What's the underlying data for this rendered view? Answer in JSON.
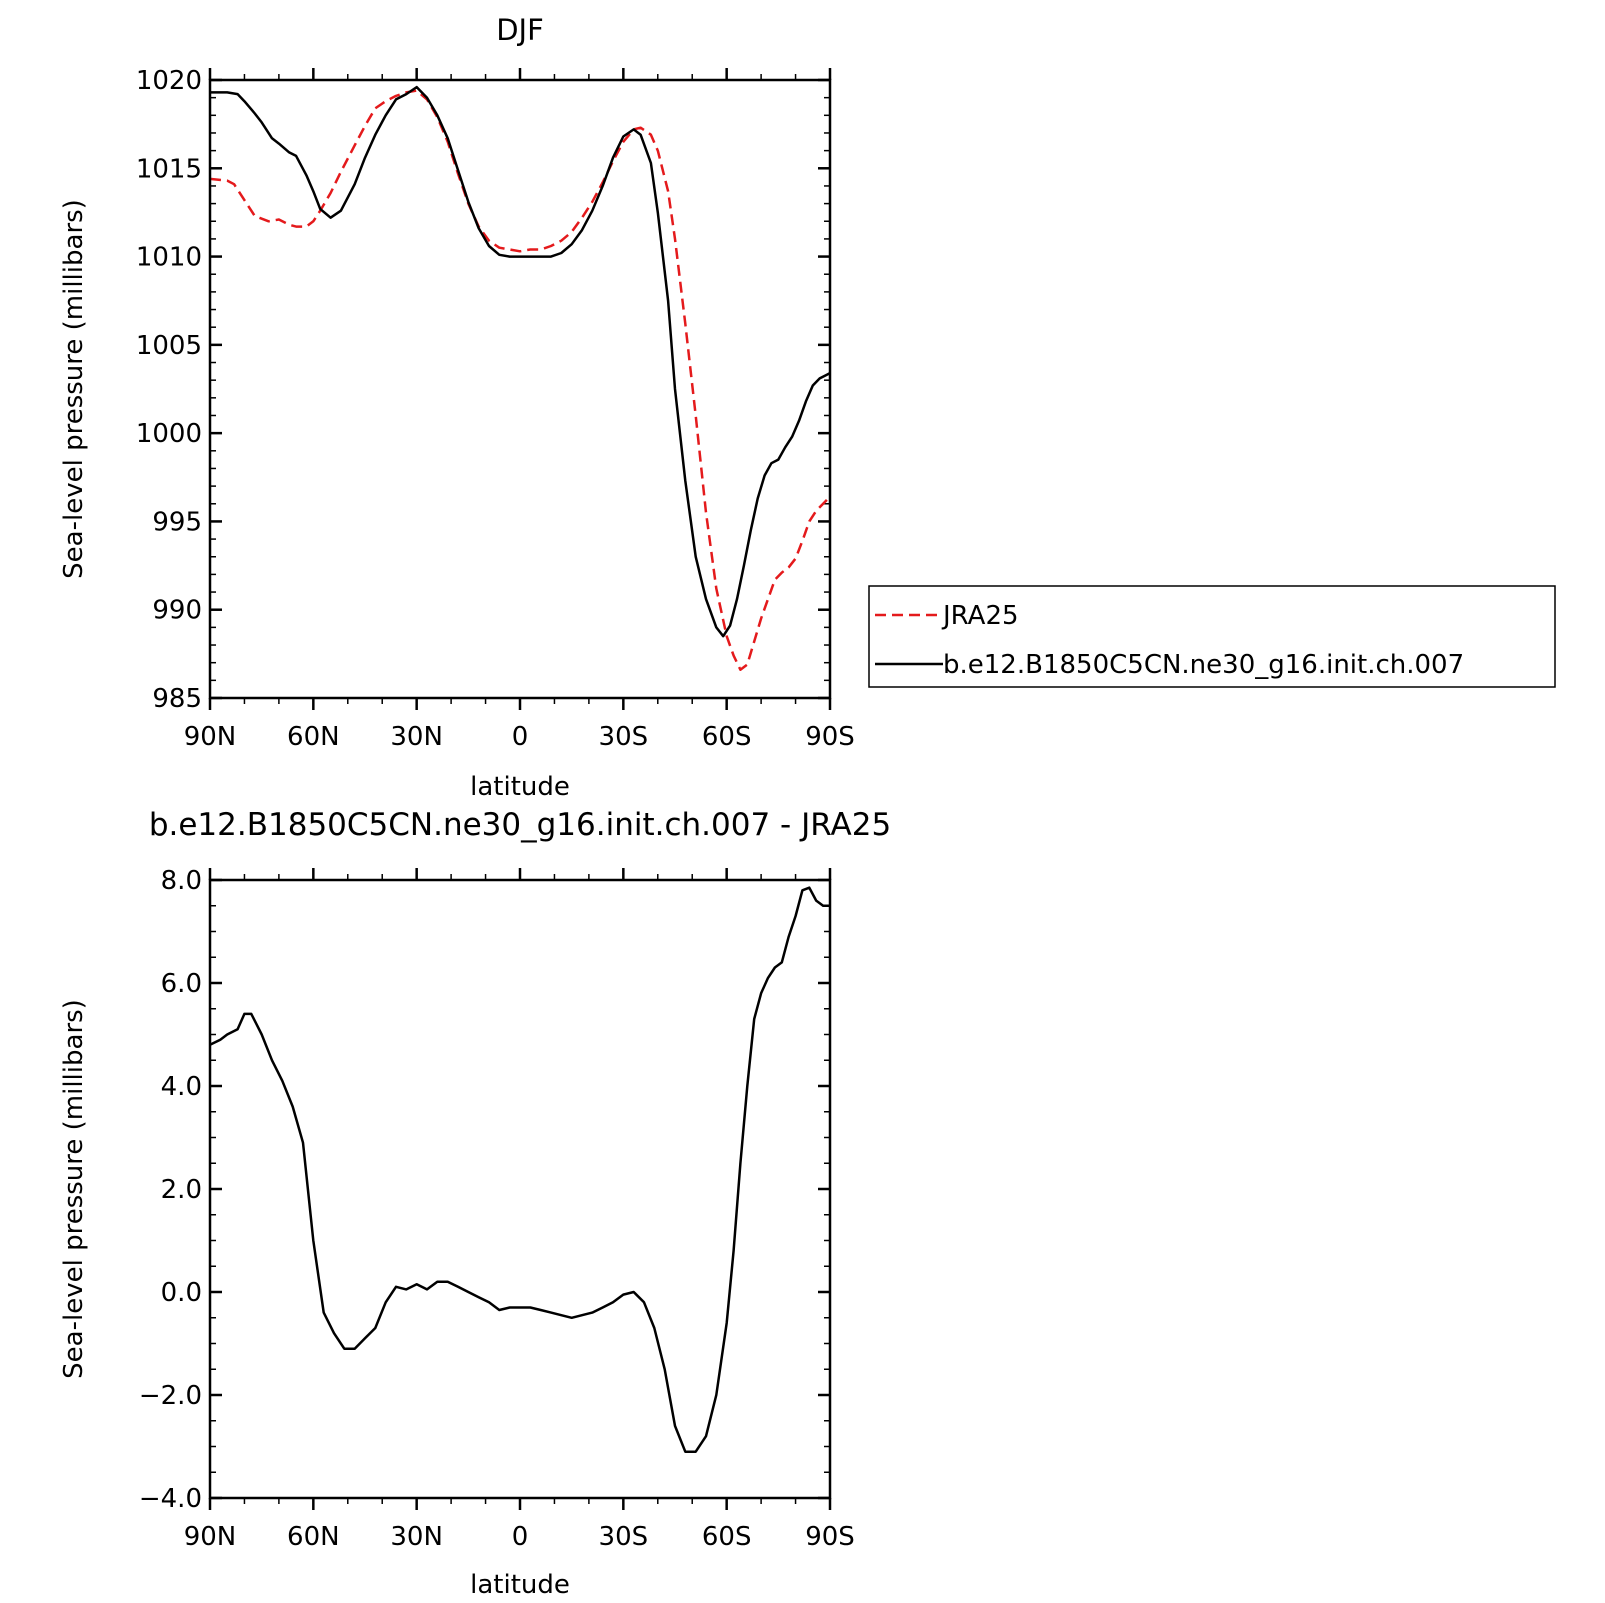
{
  "chart_data": [
    {
      "type": "line",
      "title": "DJF",
      "xlabel": "latitude",
      "ylabel": "Sea-level pressure (millibars)",
      "xlim": [
        90,
        -90
      ],
      "ylim": [
        985,
        1020
      ],
      "x_ticks": [
        90,
        60,
        30,
        0,
        -30,
        -60,
        -90
      ],
      "x_tick_labels": [
        "90N",
        "60N",
        "30N",
        "0",
        "30S",
        "60S",
        "90S"
      ],
      "y_ticks": [
        985,
        990,
        995,
        1000,
        1005,
        1010,
        1015,
        1020
      ],
      "y_tick_labels": [
        "985",
        "990",
        "995",
        "1000",
        "1005",
        "1010",
        "1015",
        "1020"
      ],
      "legend_position": "right",
      "series": [
        {
          "name": "JRA25",
          "color": "#e41a1c",
          "style": "dashed",
          "x": [
            90,
            85,
            83,
            80,
            77,
            73,
            70,
            67,
            65,
            62,
            60,
            58,
            55,
            52,
            48,
            45,
            42,
            39,
            36,
            33,
            30,
            27,
            24,
            21,
            18,
            15,
            12,
            9,
            6,
            3,
            0,
            -3,
            -6,
            -9,
            -12,
            -15,
            -18,
            -21,
            -24,
            -27,
            -30,
            -33,
            -35,
            -38,
            -40,
            -43,
            -45,
            -48,
            -51,
            -54,
            -57,
            -60,
            -62,
            -64,
            -66,
            -68,
            -70,
            -72,
            -74,
            -76,
            -78,
            -80,
            -82,
            -84,
            -86,
            -88,
            -90
          ],
          "y": [
            1014.4,
            1014.3,
            1014.1,
            1013.2,
            1012.3,
            1012.0,
            1012.1,
            1011.8,
            1011.7,
            1011.7,
            1012.0,
            1012.6,
            1013.6,
            1014.8,
            1016.3,
            1017.4,
            1018.4,
            1018.8,
            1019.1,
            1019.3,
            1019.4,
            1018.9,
            1017.9,
            1016.5,
            1014.7,
            1013.0,
            1011.7,
            1010.9,
            1010.5,
            1010.4,
            1010.3,
            1010.4,
            1010.4,
            1010.6,
            1010.9,
            1011.4,
            1012.2,
            1013.1,
            1014.2,
            1015.4,
            1016.5,
            1017.2,
            1017.3,
            1016.9,
            1016.0,
            1013.7,
            1011.0,
            1006.2,
            1001.0,
            995.5,
            991.2,
            988.5,
            987.4,
            986.6,
            986.9,
            988.2,
            989.5,
            990.6,
            991.7,
            992.1,
            992.4,
            992.9,
            993.9,
            995.0,
            995.6,
            996.0,
            996.4
          ]
        },
        {
          "name": "b.e12.B1850C5CN.ne30_g16.init.ch.007",
          "color": "#000000",
          "style": "solid",
          "x": [
            90,
            87,
            85,
            82,
            80,
            77,
            75,
            72,
            70,
            67,
            65,
            62,
            60,
            58,
            55,
            52,
            48,
            45,
            42,
            39,
            36,
            33,
            30,
            27,
            24,
            21,
            18,
            15,
            12,
            9,
            6,
            3,
            0,
            -3,
            -6,
            -9,
            -12,
            -15,
            -18,
            -21,
            -24,
            -27,
            -30,
            -33,
            -35,
            -38,
            -40,
            -43,
            -45,
            -48,
            -51,
            -54,
            -57,
            -59,
            -61,
            -63,
            -65,
            -67,
            -69,
            -71,
            -73,
            -75,
            -77,
            -79,
            -81,
            -83,
            -85,
            -87,
            -89,
            -90
          ],
          "y": [
            1019.3,
            1019.3,
            1019.3,
            1019.2,
            1018.8,
            1018.1,
            1017.6,
            1016.7,
            1016.4,
            1015.9,
            1015.7,
            1014.6,
            1013.7,
            1012.7,
            1012.2,
            1012.6,
            1014.1,
            1015.6,
            1016.9,
            1018.0,
            1018.9,
            1019.2,
            1019.6,
            1019.0,
            1018.0,
            1016.7,
            1014.9,
            1013.1,
            1011.6,
            1010.6,
            1010.1,
            1010.0,
            1010.0,
            1010.0,
            1010.0,
            1010.0,
            1010.2,
            1010.7,
            1011.5,
            1012.6,
            1014.0,
            1015.6,
            1016.8,
            1017.2,
            1016.9,
            1015.3,
            1012.5,
            1007.5,
            1002.5,
            997.3,
            993.0,
            990.6,
            989.0,
            988.5,
            989.1,
            990.6,
            992.5,
            994.5,
            996.3,
            997.6,
            998.3,
            998.5,
            999.2,
            999.8,
            1000.7,
            1001.8,
            1002.7,
            1003.1,
            1003.3,
            1003.4
          ]
        }
      ]
    },
    {
      "type": "line",
      "title": "b.e12.B1850C5CN.ne30_g16.init.ch.007 - JRA25",
      "xlabel": "latitude",
      "ylabel": "Sea-level pressure (millibars)",
      "xlim": [
        90,
        -90
      ],
      "ylim": [
        -4.0,
        8.0
      ],
      "x_ticks": [
        90,
        60,
        30,
        0,
        -30,
        -60,
        -90
      ],
      "x_tick_labels": [
        "90N",
        "60N",
        "30N",
        "0",
        "30S",
        "60S",
        "90S"
      ],
      "y_ticks": [
        -4.0,
        -2.0,
        0.0,
        2.0,
        4.0,
        6.0,
        8.0
      ],
      "y_tick_labels": [
        "−4.0",
        "−2.0",
        "0.0",
        "2.0",
        "4.0",
        "6.0",
        "8.0"
      ],
      "series": [
        {
          "color": "#000000",
          "style": "solid",
          "x": [
            90,
            87,
            85,
            82,
            80,
            78,
            75,
            72,
            69,
            66,
            63,
            60,
            57,
            54,
            51,
            48,
            45,
            42,
            39,
            36,
            33,
            30,
            27,
            24,
            21,
            18,
            15,
            12,
            9,
            6,
            3,
            0,
            -3,
            -6,
            -9,
            -12,
            -15,
            -18,
            -21,
            -24,
            -27,
            -30,
            -33,
            -36,
            -39,
            -42,
            -45,
            -48,
            -51,
            -54,
            -57,
            -60,
            -62,
            -64,
            -66,
            -68,
            -70,
            -72,
            -74,
            -76,
            -78,
            -80,
            -82,
            -84,
            -86,
            -88,
            -90
          ],
          "y": [
            4.8,
            4.9,
            5.0,
            5.1,
            5.4,
            5.4,
            5.0,
            4.5,
            4.1,
            3.6,
            2.9,
            1.0,
            -0.4,
            -0.8,
            -1.1,
            -1.1,
            -0.9,
            -0.7,
            -0.2,
            0.1,
            0.05,
            0.15,
            0.05,
            0.2,
            0.2,
            0.1,
            0.0,
            -0.1,
            -0.2,
            -0.35,
            -0.3,
            -0.3,
            -0.3,
            -0.35,
            -0.4,
            -0.45,
            -0.5,
            -0.45,
            -0.4,
            -0.3,
            -0.2,
            -0.05,
            0.0,
            -0.2,
            -0.7,
            -1.5,
            -2.6,
            -3.1,
            -3.1,
            -2.8,
            -2.0,
            -0.6,
            0.8,
            2.5,
            4.0,
            5.3,
            5.8,
            6.1,
            6.3,
            6.4,
            6.9,
            7.3,
            7.8,
            7.85,
            7.6,
            7.5,
            7.5
          ]
        }
      ]
    }
  ]
}
